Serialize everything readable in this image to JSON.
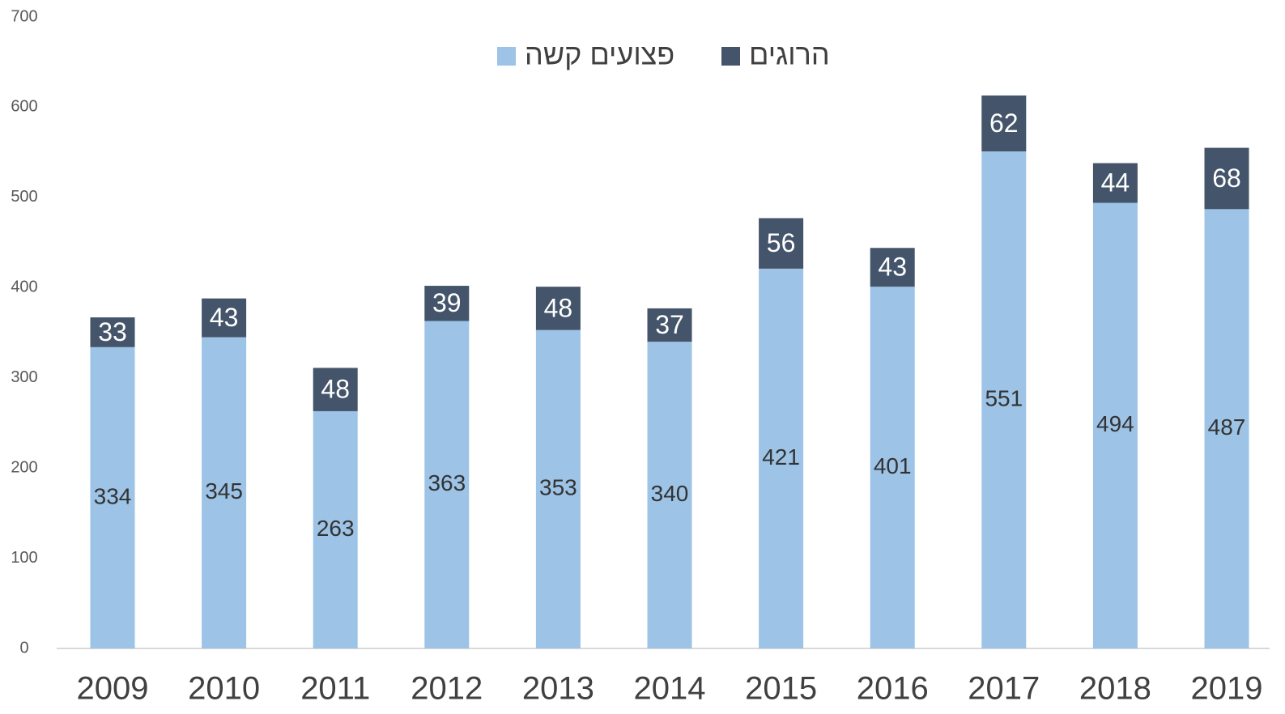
{
  "chart_data": {
    "type": "stacked_bar",
    "categories": [
      "2009",
      "2010",
      "2011",
      "2012",
      "2013",
      "2014",
      "2015",
      "2016",
      "2017",
      "2018",
      "2019"
    ],
    "series": [
      {
        "name": "פצועים קשה",
        "color": "#9dc3e6",
        "values": [
          334,
          345,
          263,
          363,
          353,
          340,
          421,
          401,
          551,
          494,
          487
        ]
      },
      {
        "name": "הרוגים",
        "color": "#44546a",
        "values": [
          33,
          43,
          48,
          39,
          48,
          37,
          56,
          43,
          62,
          44,
          68
        ]
      }
    ],
    "ylim": [
      0,
      700
    ],
    "yticks": [
      0,
      100,
      200,
      300,
      400,
      500,
      600,
      700
    ],
    "grid": false
  }
}
